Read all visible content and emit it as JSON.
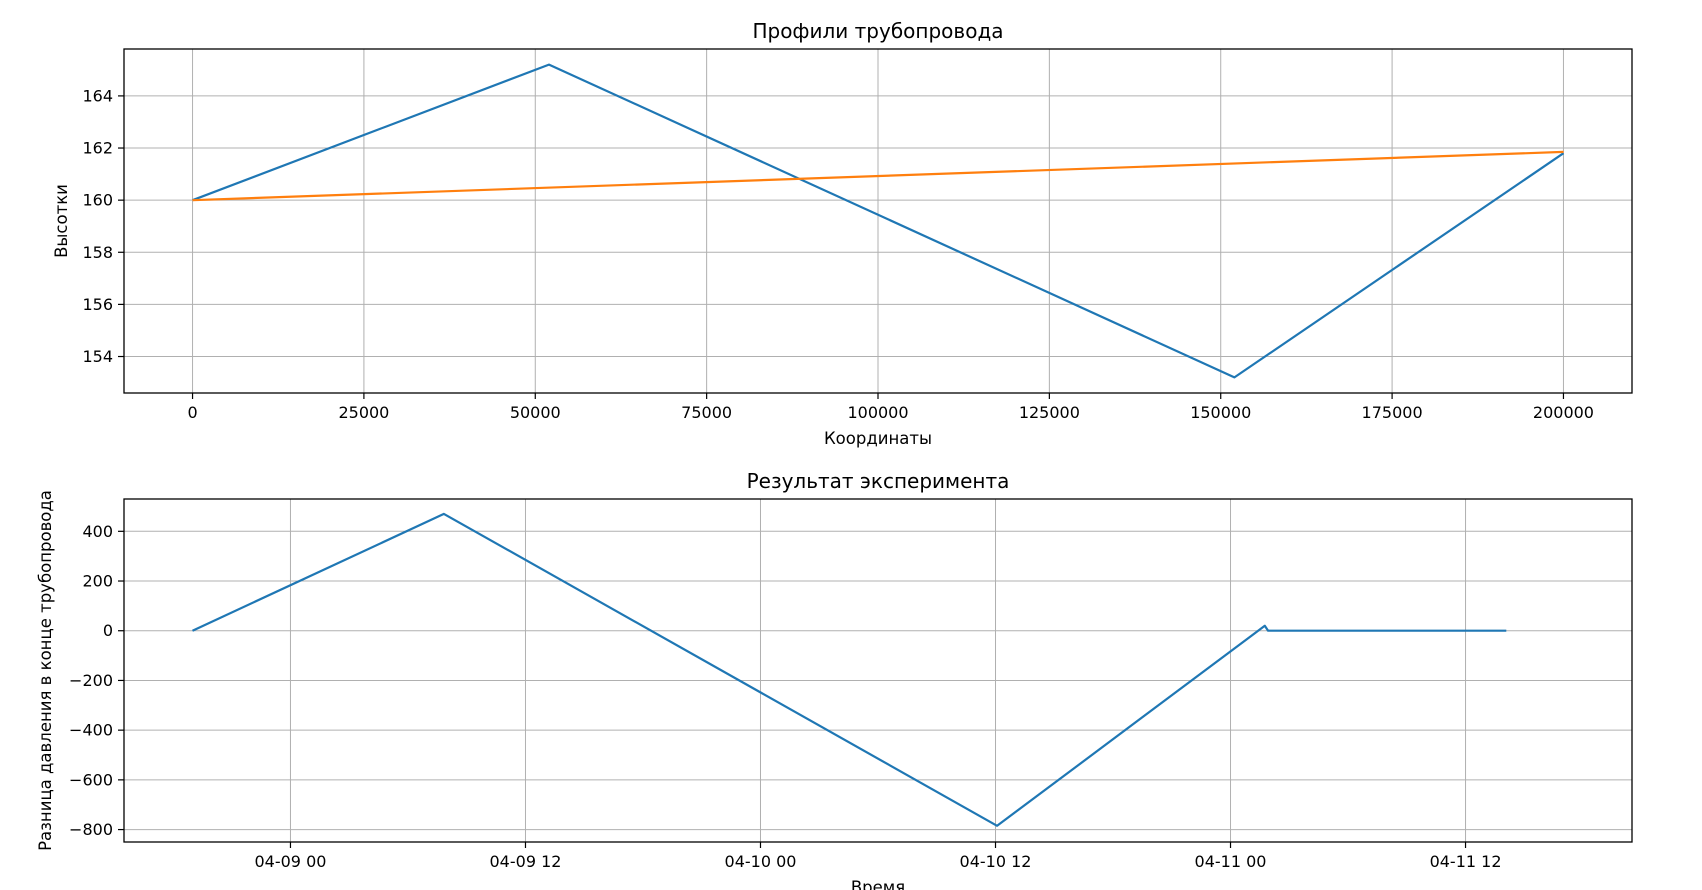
{
  "chart_data": [
    {
      "type": "line",
      "title": "Профили трубопровода",
      "xlabel": "Координаты",
      "ylabel": "Высотки",
      "xlim": [
        -10000,
        210000
      ],
      "ylim": [
        152.6,
        165.8
      ],
      "xticks": [
        0,
        25000,
        50000,
        75000,
        100000,
        125000,
        150000,
        175000,
        200000
      ],
      "yticks": [
        154,
        156,
        158,
        160,
        162,
        164
      ],
      "grid": true,
      "series": [
        {
          "color": "#1f77b4",
          "x": [
            0,
            52000,
            152000,
            200000
          ],
          "y": [
            160.0,
            165.2,
            153.2,
            161.8
          ]
        },
        {
          "color": "#ff7f0e",
          "x": [
            0,
            200000
          ],
          "y": [
            160.0,
            161.85
          ]
        }
      ]
    },
    {
      "type": "line",
      "title": "Результат эксперимента",
      "xlabel": "Время",
      "ylabel": "Разница давления в конце трубопровода",
      "xlim": [
        "2024-04-08T15:30",
        "2024-04-11T20:30"
      ],
      "ylim": [
        -850,
        530
      ],
      "xticks": [
        "2024-04-09T00:00",
        "2024-04-09T12:00",
        "2024-04-10T00:00",
        "2024-04-10T12:00",
        "2024-04-11T00:00",
        "2024-04-11T12:00"
      ],
      "xticklabels": [
        "04-09 00",
        "04-09 12",
        "04-10 00",
        "04-10 12",
        "04-11 00",
        "04-11 12"
      ],
      "yticks": [
        -800,
        -600,
        -400,
        -200,
        0,
        200,
        400
      ],
      "yticklabels": [
        "−800",
        "−600",
        "−400",
        "−200",
        "0",
        "200",
        "400"
      ],
      "grid": true,
      "series": [
        {
          "color": "#1f77b4",
          "x": [
            "2024-04-08T19:00",
            "2024-04-09T07:50",
            "2024-04-10T12:05",
            "2024-04-11T01:45",
            "2024-04-11T01:55",
            "2024-04-11T14:05"
          ],
          "y": [
            0,
            470,
            -785,
            20,
            0,
            0
          ]
        }
      ]
    }
  ]
}
